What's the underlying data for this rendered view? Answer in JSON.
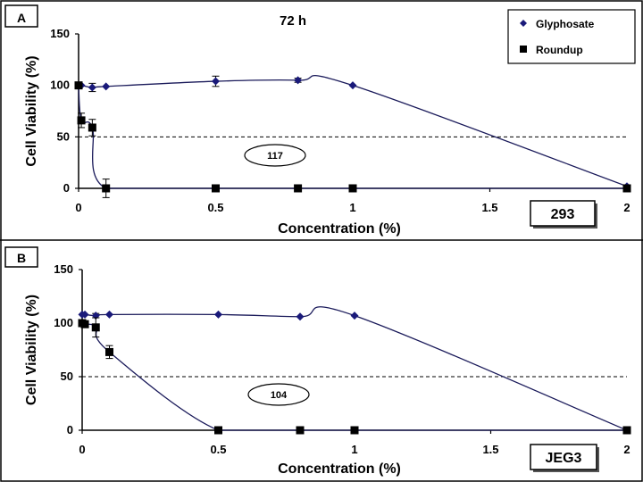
{
  "chart_data": [
    {
      "panel": "A",
      "type": "line",
      "title": "72 h",
      "xlabel": "Concentration (%)",
      "ylabel": "Cell Viability (%)",
      "xlim": [
        0,
        2
      ],
      "ylim": [
        0,
        150
      ],
      "x_ticks": [
        "0",
        "0.5",
        "1",
        "1.5",
        "2"
      ],
      "y_ticks": [
        "0",
        "50",
        "100",
        "150"
      ],
      "reference_line": 50,
      "cell_line": "293",
      "oval_label": "117",
      "legend": [
        "Glyphosate",
        "Roundup"
      ],
      "series": [
        {
          "name": "Glyphosate",
          "marker": "diamond",
          "x": [
            0,
            0.01,
            0.05,
            0.1,
            0.5,
            0.8,
            1,
            2
          ],
          "y": [
            100,
            100,
            98,
            99,
            104,
            105,
            100,
            2
          ],
          "err": [
            0,
            0,
            4,
            0,
            5,
            2,
            0,
            0
          ]
        },
        {
          "name": "Roundup",
          "marker": "square",
          "x": [
            0,
            0.01,
            0.05,
            0.1,
            0.5,
            0.8,
            1,
            2
          ],
          "y": [
            100,
            66,
            59,
            0,
            0,
            0,
            0,
            0
          ],
          "err": [
            0,
            7,
            8,
            9,
            0,
            0,
            0,
            0
          ]
        }
      ]
    },
    {
      "panel": "B",
      "type": "line",
      "title": "",
      "xlabel": "Concentration (%)",
      "ylabel": "Cell Viability (%)",
      "xlim": [
        0,
        2
      ],
      "ylim": [
        0,
        150
      ],
      "x_ticks": [
        "0",
        "0.5",
        "1",
        "1.5",
        "2"
      ],
      "y_ticks": [
        "0",
        "50",
        "100",
        "150"
      ],
      "reference_line": 50,
      "cell_line": "JEG3",
      "oval_label": "104",
      "series": [
        {
          "name": "Glyphosate",
          "marker": "diamond",
          "x": [
            0,
            0.01,
            0.05,
            0.1,
            0.5,
            0.8,
            1,
            2
          ],
          "y": [
            108,
            108,
            107,
            108,
            108,
            106,
            107,
            0
          ],
          "err": [
            0,
            0,
            2,
            0,
            0,
            0,
            0,
            0
          ]
        },
        {
          "name": "Roundup",
          "marker": "square",
          "x": [
            0,
            0.01,
            0.05,
            0.1,
            0.5,
            0.8,
            1,
            2
          ],
          "y": [
            100,
            99,
            96,
            73,
            0,
            0,
            0,
            0
          ],
          "err": [
            0,
            0,
            9,
            6,
            0,
            0,
            0,
            0
          ]
        }
      ]
    }
  ],
  "colors": {
    "glyphosate": "#1a1a7a",
    "roundup": "#000000",
    "line": "#1a1a5a"
  }
}
